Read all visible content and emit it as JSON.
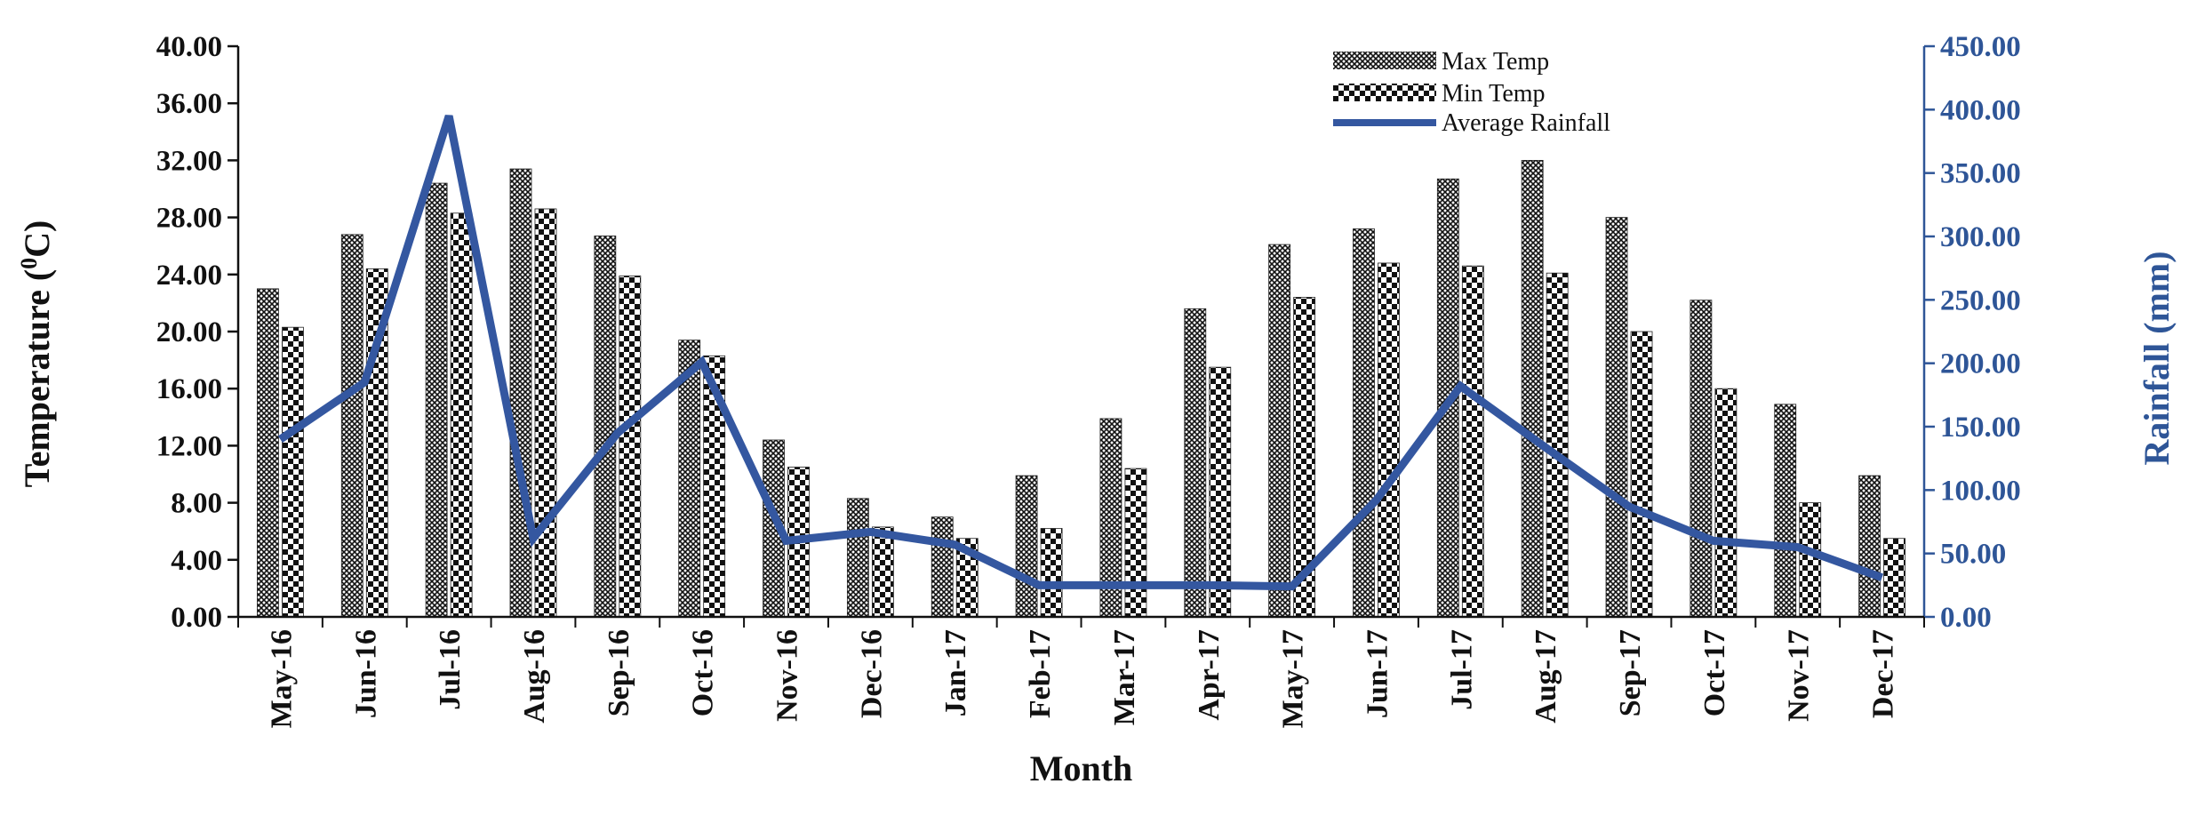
{
  "chart_data": {
    "type": "bar",
    "title": "",
    "xlabel": "Month",
    "ylabel_left": "Temperature (",
    "ylabel_left_sup": "0",
    "ylabel_left_end": "C)",
    "ylabel_right": "Rainfall (mm)",
    "ylim_left": [
      0,
      40
    ],
    "ylim_right": [
      0,
      450
    ],
    "yticks_left": [
      "0.00",
      "4.00",
      "8.00",
      "12.00",
      "16.00",
      "20.00",
      "24.00",
      "28.00",
      "32.00",
      "36.00",
      "40.00"
    ],
    "yticks_right": [
      "0.00",
      "50.00",
      "100.00",
      "150.00",
      "200.00",
      "250.00",
      "300.00",
      "350.00",
      "400.00",
      "450.00"
    ],
    "categories": [
      "May-16",
      "Jun-16",
      "Jul-16",
      "Aug-16",
      "Sep-16",
      "Oct-16",
      "Nov-16",
      "Dec-16",
      "Jan-17",
      "Feb-17",
      "Mar-17",
      "Apr-17",
      "May-17",
      "Jun-17",
      "Jul-17",
      "Aug-17",
      "Sep-17",
      "Oct-17",
      "Nov-17",
      "Dec-17"
    ],
    "series": [
      {
        "name": "Max Temp",
        "type": "bar",
        "axis": "left",
        "values": [
          23.0,
          26.8,
          30.4,
          31.4,
          26.7,
          19.4,
          12.4,
          8.3,
          7.0,
          9.9,
          13.9,
          21.6,
          26.1,
          27.2,
          30.7,
          32.0,
          28.0,
          22.2,
          14.9,
          9.9
        ]
      },
      {
        "name": "Min Temp",
        "type": "bar",
        "axis": "left",
        "values": [
          20.3,
          24.4,
          28.3,
          28.6,
          23.9,
          18.3,
          10.5,
          6.3,
          5.5,
          6.2,
          10.4,
          17.5,
          22.4,
          24.8,
          24.6,
          24.1,
          20.0,
          16.0,
          8.0,
          5.5
        ]
      },
      {
        "name": "Average Rainfall",
        "type": "line",
        "axis": "right",
        "values": [
          140,
          185,
          395,
          62,
          145,
          201,
          60,
          67,
          57,
          25,
          25,
          25,
          24,
          92,
          182,
          134,
          87,
          60,
          55,
          31
        ]
      }
    ],
    "legend_position": "top-center",
    "grid": false,
    "colors": {
      "bars": "#111111",
      "rainfall_line": "#3457a0",
      "right_axis": "#2e5597"
    }
  }
}
